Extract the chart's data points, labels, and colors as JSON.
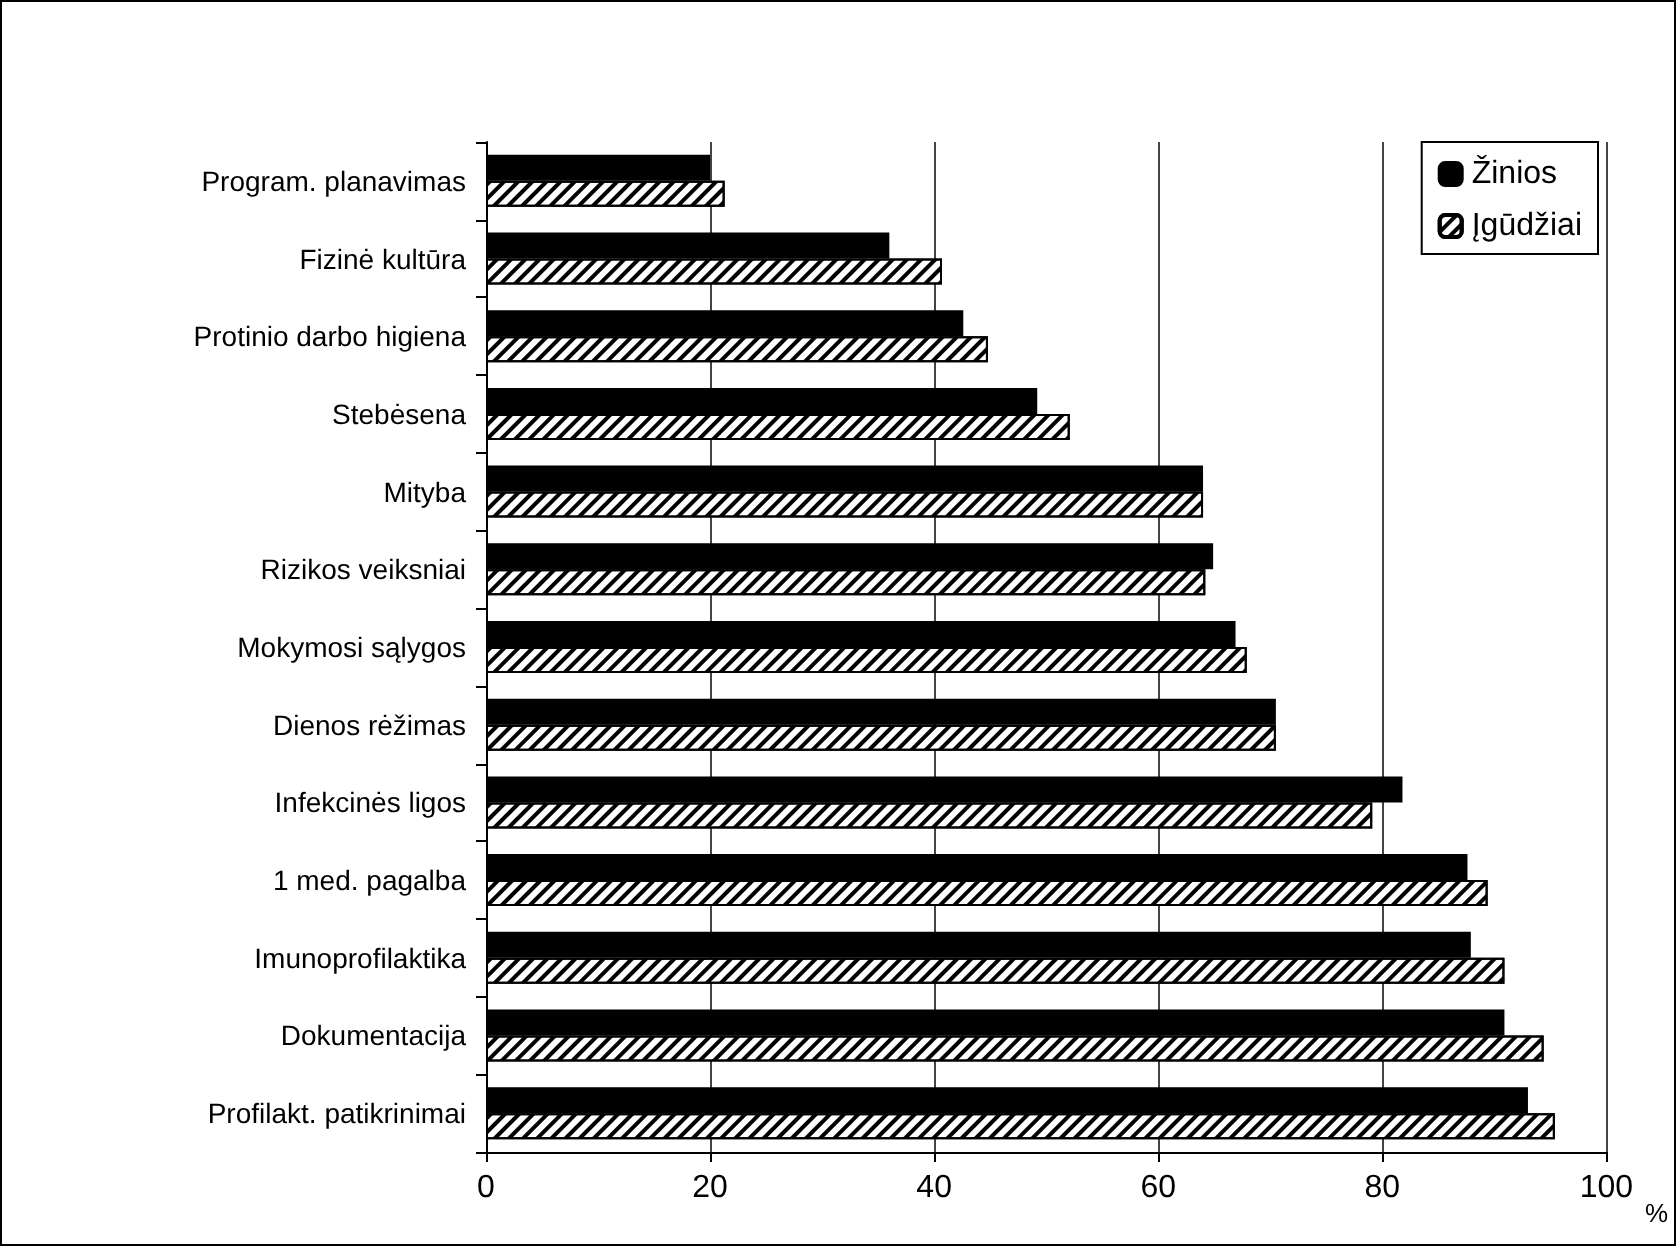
{
  "chart_data": {
    "type": "bar",
    "orientation": "horizontal",
    "xlabel": "%",
    "categories": [
      "Program. planavimas",
      "Fizinė kultūra",
      "Protinio darbo higiena",
      "Stebėsena",
      "Mityba",
      "Rizikos veiksniai",
      "Mokymosi sąlygos",
      "Dienos rėžimas",
      "Infekcinės ligos",
      "1 med. pagalba",
      "Imunoprofilaktika",
      "Dokumentacija",
      "Profilakt. patikrinimai"
    ],
    "series": [
      {
        "name": "Žinios",
        "color": "#000000",
        "values": [
          20,
          36,
          42.6,
          49.2,
          64,
          64.9,
          66.9,
          70.5,
          81.8,
          87.6,
          87.9,
          90.9,
          93
        ]
      },
      {
        "name": "Įgūdžiai",
        "color": "#ffffff",
        "values": [
          21.3,
          40.7,
          44.8,
          52.1,
          64,
          64.2,
          67.9,
          70.5,
          79.1,
          89.4,
          90.9,
          94.4,
          95.4
        ]
      }
    ],
    "xlim": [
      0,
      100
    ],
    "xticks": [
      0,
      20,
      40,
      60,
      80,
      100
    ],
    "grid": "x",
    "legend": "top right"
  }
}
